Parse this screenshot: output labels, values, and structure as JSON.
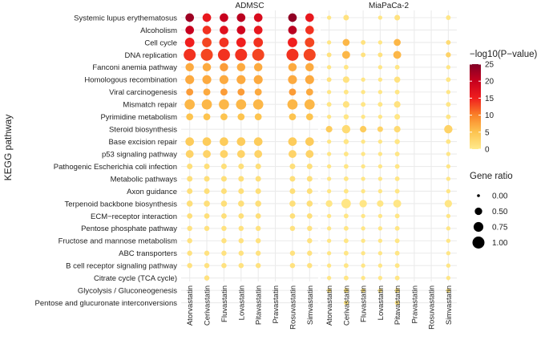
{
  "chart_data": {
    "type": "dot-plot",
    "ylabel": "KEGG pathway",
    "facets": [
      "ADMSC",
      "MiaPaCa-2"
    ],
    "columns": [
      "Atorvastatin",
      "Cerivastatin",
      "Fluvastatin",
      "Lovastatin",
      "Pitavastatin",
      "Pravastatin",
      "Rosuvastatin",
      "Simvastatin"
    ],
    "rows": [
      "Systemic lupus erythematosus",
      "Alcoholism",
      "Cell cycle",
      "DNA replication",
      "Fanconi anemia pathway",
      "Homologous recombination",
      "Viral carcinogenesis",
      "Mismatch repair",
      "Pyrimidine metabolism",
      "Steroid biosynthesis",
      "Base excision repair",
      "p53 signaling pathway",
      "Pathogenic Escherichia coli infection",
      "Metabolic pathways",
      "Axon guidance",
      "Terpenoid backbone biosynthesis",
      "ECM−receptor interaction",
      "Pentose phosphate pathway",
      "Fructose and mannose metabolism",
      "ABC transporters",
      "B cell receptor signaling pathway",
      "Citrate cycle (TCA cycle)",
      "Glycolysis / Gluconeogenesis",
      "Pentose and glucuronate interconversions"
    ],
    "color_legend": {
      "title": "−log10(P−value)",
      "min": 0,
      "max": 25,
      "ticks": [
        25,
        20,
        15,
        10,
        5,
        0
      ]
    },
    "size_legend": {
      "title": "Gene ratio",
      "ticks": [
        0.0,
        0.5,
        0.75,
        1.0
      ],
      "tick_labels": [
        "0.00",
        "0.50",
        "0.75",
        "1.00"
      ]
    },
    "points": {
      "ADMSC": [
        [
          [
            0.62,
            23
          ],
          [
            0.62,
            16
          ],
          [
            0.62,
            20
          ],
          [
            0.62,
            21
          ],
          [
            0.62,
            18
          ],
          null,
          [
            0.62,
            24
          ],
          [
            0.62,
            16
          ]
        ],
        [
          [
            0.62,
            20
          ],
          [
            0.62,
            14
          ],
          [
            0.62,
            17
          ],
          [
            0.62,
            19
          ],
          [
            0.62,
            16
          ],
          null,
          [
            0.62,
            21
          ],
          [
            0.62,
            14
          ]
        ],
        [
          [
            0.72,
            15
          ],
          [
            0.72,
            13
          ],
          [
            0.72,
            14
          ],
          [
            0.72,
            15
          ],
          [
            0.72,
            14
          ],
          null,
          [
            0.72,
            15
          ],
          [
            0.72,
            13
          ]
        ],
        [
          [
            1.0,
            14
          ],
          [
            1.0,
            13
          ],
          [
            1.0,
            14
          ],
          [
            1.0,
            14
          ],
          [
            1.0,
            13
          ],
          null,
          [
            1.0,
            14
          ],
          [
            1.0,
            13
          ]
        ],
        [
          [
            0.6,
            7
          ],
          [
            0.6,
            7
          ],
          [
            0.6,
            8
          ],
          [
            0.6,
            7
          ],
          [
            0.6,
            7
          ],
          null,
          [
            0.6,
            7
          ],
          [
            0.6,
            7
          ]
        ],
        [
          [
            0.66,
            7
          ],
          [
            0.66,
            7
          ],
          [
            0.66,
            7
          ],
          [
            0.66,
            7
          ],
          [
            0.66,
            7
          ],
          null,
          [
            0.66,
            7
          ],
          [
            0.66,
            7
          ]
        ],
        [
          [
            0.46,
            8
          ],
          [
            0.46,
            7
          ],
          [
            0.46,
            8
          ],
          [
            0.46,
            8
          ],
          [
            0.46,
            7
          ],
          null,
          [
            0.46,
            8
          ],
          [
            0.46,
            7
          ]
        ],
        [
          [
            0.8,
            6
          ],
          [
            0.8,
            6
          ],
          [
            0.8,
            6
          ],
          [
            0.8,
            6
          ],
          [
            0.8,
            6
          ],
          null,
          [
            0.8,
            6
          ],
          [
            0.8,
            6
          ]
        ],
        [
          [
            0.45,
            5
          ],
          [
            0.45,
            5
          ],
          [
            0.45,
            5
          ],
          [
            0.45,
            5
          ],
          [
            0.45,
            5
          ],
          null,
          [
            0.45,
            5
          ],
          [
            0.45,
            5
          ]
        ],
        null,
        [
          [
            0.62,
            4
          ],
          [
            0.62,
            4
          ],
          [
            0.62,
            4
          ],
          [
            0.62,
            4
          ],
          [
            0.62,
            4
          ],
          null,
          [
            0.62,
            4
          ],
          [
            0.62,
            4
          ]
        ],
        [
          [
            0.55,
            3
          ],
          [
            0.55,
            3
          ],
          [
            0.55,
            3
          ],
          [
            0.55,
            3
          ],
          [
            0.55,
            3
          ],
          null,
          [
            0.55,
            3
          ],
          [
            0.55,
            3
          ]
        ],
        [
          [
            0.3,
            1.5
          ],
          [
            0.3,
            1.5
          ],
          [
            0.3,
            1.5
          ],
          [
            0.3,
            1.5
          ],
          [
            0.3,
            1.5
          ],
          null,
          [
            0.3,
            1.5
          ],
          [
            0.3,
            1.5
          ]
        ],
        [
          [
            0.3,
            1.5
          ],
          [
            0.3,
            1.5
          ],
          [
            0.3,
            1.5
          ],
          [
            0.3,
            1.5
          ],
          [
            0.3,
            1.5
          ],
          null,
          [
            0.3,
            1.5
          ],
          [
            0.3,
            1.5
          ]
        ],
        [
          [
            0.3,
            1.5
          ],
          [
            0.3,
            1.5
          ],
          [
            0.3,
            1.5
          ],
          [
            0.3,
            1.5
          ],
          [
            0.3,
            1.5
          ],
          null,
          [
            0.3,
            1.5
          ],
          [
            0.3,
            1.5
          ]
        ],
        [
          [
            0.35,
            1.5
          ],
          [
            0.35,
            1.5
          ],
          [
            0.35,
            1.5
          ],
          [
            0.35,
            1.5
          ],
          [
            0.35,
            1.5
          ],
          null,
          [
            0.35,
            1.5
          ],
          [
            0.35,
            1.5
          ]
        ],
        [
          [
            0.28,
            1.5
          ],
          [
            0.28,
            1.5
          ],
          [
            0.28,
            1.5
          ],
          [
            0.28,
            1.5
          ],
          [
            0.28,
            1.5
          ],
          null,
          [
            0.28,
            1.5
          ],
          [
            0.28,
            1.5
          ]
        ],
        [
          [
            0.25,
            1
          ],
          [
            0.25,
            1
          ],
          [
            0.25,
            1
          ],
          [
            0.25,
            1
          ],
          [
            0.25,
            1
          ],
          null,
          [
            0.25,
            1
          ],
          [
            0.25,
            1
          ]
        ],
        [
          [
            0.25,
            1
          ],
          null,
          [
            0.25,
            1
          ],
          [
            0.25,
            1
          ],
          [
            0.25,
            1
          ],
          null,
          null,
          [
            0.25,
            1
          ]
        ],
        [
          [
            0.25,
            1
          ],
          [
            0.25,
            1
          ],
          [
            0.25,
            1
          ],
          [
            0.25,
            1
          ],
          [
            0.25,
            1
          ],
          null,
          [
            0.25,
            1
          ],
          [
            0.25,
            1
          ]
        ],
        [
          [
            0.25,
            1
          ],
          [
            0.25,
            1
          ],
          [
            0.25,
            1
          ],
          [
            0.25,
            1
          ],
          [
            0.25,
            1
          ],
          null,
          [
            0.25,
            1
          ],
          [
            0.25,
            1
          ]
        ],
        [
          null,
          [
            0.25,
            1
          ],
          null,
          null,
          null,
          null,
          null,
          null
        ],
        [
          null,
          null,
          null,
          null,
          null,
          null,
          null,
          null
        ],
        [
          null,
          null,
          null,
          null,
          null,
          null,
          null,
          null
        ]
      ],
      "MiaPaCa-2": [
        [
          [
            0.15,
            0.5
          ],
          [
            0.3,
            1
          ],
          null,
          [
            0.15,
            0.5
          ],
          [
            0.3,
            1
          ],
          null,
          null,
          [
            0.2,
            0.5
          ]
        ],
        [
          null,
          null,
          null,
          null,
          null,
          null,
          null,
          null
        ],
        [
          [
            0.15,
            0.5
          ],
          [
            0.45,
            6
          ],
          [
            0.2,
            1
          ],
          [
            0.15,
            0.5
          ],
          [
            0.45,
            6
          ],
          null,
          null,
          [
            0.2,
            2
          ]
        ],
        [
          [
            0.2,
            1
          ],
          [
            0.55,
            6
          ],
          [
            0.2,
            1
          ],
          [
            0.2,
            1
          ],
          [
            0.55,
            6
          ],
          null,
          null,
          [
            0.25,
            3
          ]
        ],
        [
          [
            0.15,
            0.5
          ],
          [
            0.2,
            0.5
          ],
          null,
          [
            0.15,
            0.5
          ],
          [
            0.2,
            0.5
          ],
          null,
          null,
          [
            0.15,
            0.5
          ]
        ],
        [
          [
            0.2,
            1
          ],
          [
            0.4,
            1
          ],
          [
            0.15,
            0.5
          ],
          [
            0.15,
            0.5
          ],
          [
            0.35,
            1
          ],
          null,
          null,
          [
            0.2,
            0.5
          ]
        ],
        [
          [
            0.15,
            0.5
          ],
          [
            0.2,
            0.5
          ],
          [
            0.15,
            0.5
          ],
          [
            0.15,
            0.5
          ],
          [
            0.2,
            0.5
          ],
          null,
          null,
          [
            0.15,
            0.5
          ]
        ],
        [
          [
            0.2,
            0.5
          ],
          [
            0.4,
            1
          ],
          [
            0.2,
            0.5
          ],
          [
            0.2,
            0.5
          ],
          [
            0.4,
            1
          ],
          null,
          null,
          [
            0.2,
            0.5
          ]
        ],
        [
          [
            0.15,
            0.5
          ],
          [
            0.25,
            0.5
          ],
          [
            0.15,
            0.5
          ],
          [
            0.15,
            0.5
          ],
          [
            0.3,
            0.5
          ],
          null,
          null,
          [
            0.2,
            0.5
          ]
        ],
        [
          [
            0.4,
            4
          ],
          [
            0.6,
            2
          ],
          [
            0.4,
            4
          ],
          [
            0.3,
            3
          ],
          [
            0.4,
            2
          ],
          null,
          null,
          [
            0.6,
            3
          ]
        ],
        [
          [
            0.15,
            0.5
          ],
          [
            0.25,
            0.5
          ],
          [
            0.15,
            0.5
          ],
          [
            0.15,
            0.5
          ],
          [
            0.25,
            0.5
          ],
          null,
          null,
          [
            0.2,
            0.5
          ]
        ],
        [
          [
            0.15,
            0.5
          ],
          [
            0.2,
            0.5
          ],
          [
            0.15,
            0.5
          ],
          [
            0.15,
            0.5
          ],
          [
            0.2,
            0.5
          ],
          null,
          null,
          [
            0.15,
            0.5
          ]
        ],
        [
          [
            0.15,
            0.5
          ],
          [
            0.2,
            0.5
          ],
          [
            0.15,
            0.5
          ],
          [
            0.15,
            0.5
          ],
          [
            0.2,
            0.5
          ],
          null,
          null,
          [
            0.15,
            0.5
          ]
        ],
        [
          [
            0.15,
            0.5
          ],
          [
            0.2,
            0.5
          ],
          [
            0.15,
            0.5
          ],
          [
            0.15,
            0.5
          ],
          [
            0.2,
            0.5
          ],
          null,
          null,
          [
            0.15,
            0.5
          ]
        ],
        [
          [
            0.15,
            0.5
          ],
          [
            0.2,
            0.5
          ],
          [
            0.15,
            0.5
          ],
          [
            0.15,
            0.5
          ],
          [
            0.2,
            0.5
          ],
          null,
          null,
          [
            0.15,
            0.5
          ]
        ],
        [
          [
            0.42,
            0.5
          ],
          [
            0.72,
            0.5
          ],
          [
            0.5,
            0.5
          ],
          [
            0.4,
            0.5
          ],
          [
            0.55,
            0.5
          ],
          null,
          null,
          [
            0.5,
            0.5
          ]
        ],
        [
          [
            0.15,
            0.5
          ],
          [
            0.2,
            0.5
          ],
          [
            0.15,
            0.5
          ],
          [
            0.15,
            0.5
          ],
          [
            0.2,
            0.5
          ],
          null,
          null,
          [
            0.15,
            0.5
          ]
        ],
        [
          [
            0.15,
            0.5
          ],
          [
            0.2,
            0.5
          ],
          [
            0.15,
            0.5
          ],
          [
            0.15,
            0.5
          ],
          [
            0.2,
            0.5
          ],
          null,
          null,
          [
            0.15,
            0.5
          ]
        ],
        [
          [
            0.15,
            0.5
          ],
          [
            0.2,
            0.5
          ],
          [
            0.15,
            0.5
          ],
          [
            0.15,
            0.5
          ],
          [
            0.2,
            0.5
          ],
          null,
          null,
          [
            0.15,
            0.5
          ]
        ],
        [
          [
            0.15,
            0.5
          ],
          [
            0.2,
            0.5
          ],
          [
            0.15,
            0.5
          ],
          [
            0.15,
            0.5
          ],
          [
            0.2,
            0.5
          ],
          null,
          null,
          [
            0.15,
            0.5
          ]
        ],
        [
          [
            0.15,
            0.5
          ],
          [
            0.2,
            0.5
          ],
          [
            0.15,
            0.5
          ],
          [
            0.15,
            0.5
          ],
          [
            0.2,
            0.5
          ],
          null,
          null,
          [
            0.15,
            0.5
          ]
        ],
        [
          [
            0.15,
            0.5
          ],
          [
            0.2,
            0.5
          ],
          [
            0.15,
            0.5
          ],
          [
            0.15,
            0.5
          ],
          [
            0.2,
            0.5
          ],
          null,
          null,
          [
            0.15,
            0.5
          ]
        ],
        [
          [
            0.15,
            0.5
          ],
          [
            0.2,
            0.5
          ],
          [
            0.15,
            0.5
          ],
          [
            0.15,
            0.5
          ],
          [
            0.2,
            0.5
          ],
          null,
          null,
          [
            0.15,
            0.5
          ]
        ],
        [
          null,
          [
            0.2,
            0.5
          ],
          null,
          null,
          [
            0.2,
            0.5
          ],
          null,
          null,
          null
        ]
      ]
    }
  }
}
